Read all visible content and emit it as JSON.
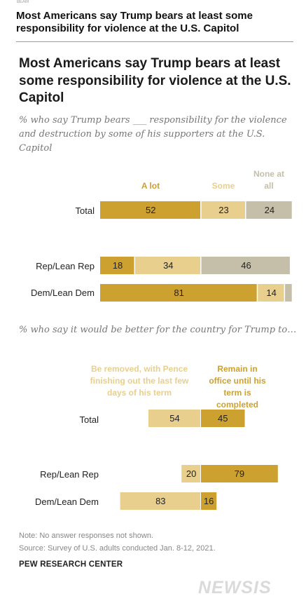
{
  "tiny_label": "BEAM",
  "headline": "Most Americans say Trump bears at least some responsibility for violence at the U.S. Capitol",
  "chart_title": "Most Americans say Trump bears at least some responsibility for violence at the U.S. Capitol",
  "note": "Note: No answer responses not shown.",
  "source": "Source: Survey of U.S. adults conducted Jan. 8-12, 2021.",
  "org": "PEW RESEARCH CENTER",
  "watermark": "NEWSIS",
  "colors": {
    "dark": "#CDA130",
    "light": "#E8CF8D",
    "gray": "#C5BFAA"
  },
  "chart_data": [
    {
      "type": "bar",
      "stacked": true,
      "orientation": "horizontal",
      "title": "% who say Trump bears ___ responsibility for the violence and destruction by some of his supporters at the U.S. Capitol",
      "categories": [
        "Total",
        "Rep/Lean Rep",
        "Dem/Lean Dem"
      ],
      "series": [
        {
          "name": "A lot",
          "values": [
            52,
            18,
            81
          ],
          "color": "#CDA130"
        },
        {
          "name": "Some",
          "values": [
            23,
            34,
            14
          ],
          "color": "#E8CF8D"
        },
        {
          "name": "None at all",
          "values": [
            24,
            46,
            4
          ],
          "color": "#C5BFAA"
        }
      ]
    },
    {
      "type": "bar",
      "stacked": true,
      "diverging": true,
      "orientation": "horizontal",
      "title": "% who say it would be better for the country for Trump to…",
      "categories": [
        "Total",
        "Rep/Lean Rep",
        "Dem/Lean Dem"
      ],
      "series": [
        {
          "name": "Be removed, with Pence finishing out the last few days of his term",
          "values": [
            54,
            20,
            83
          ],
          "color": "#E8CF8D"
        },
        {
          "name": "Remain in office until his term is completed",
          "values": [
            45,
            79,
            16
          ],
          "color": "#CDA130"
        }
      ]
    }
  ]
}
